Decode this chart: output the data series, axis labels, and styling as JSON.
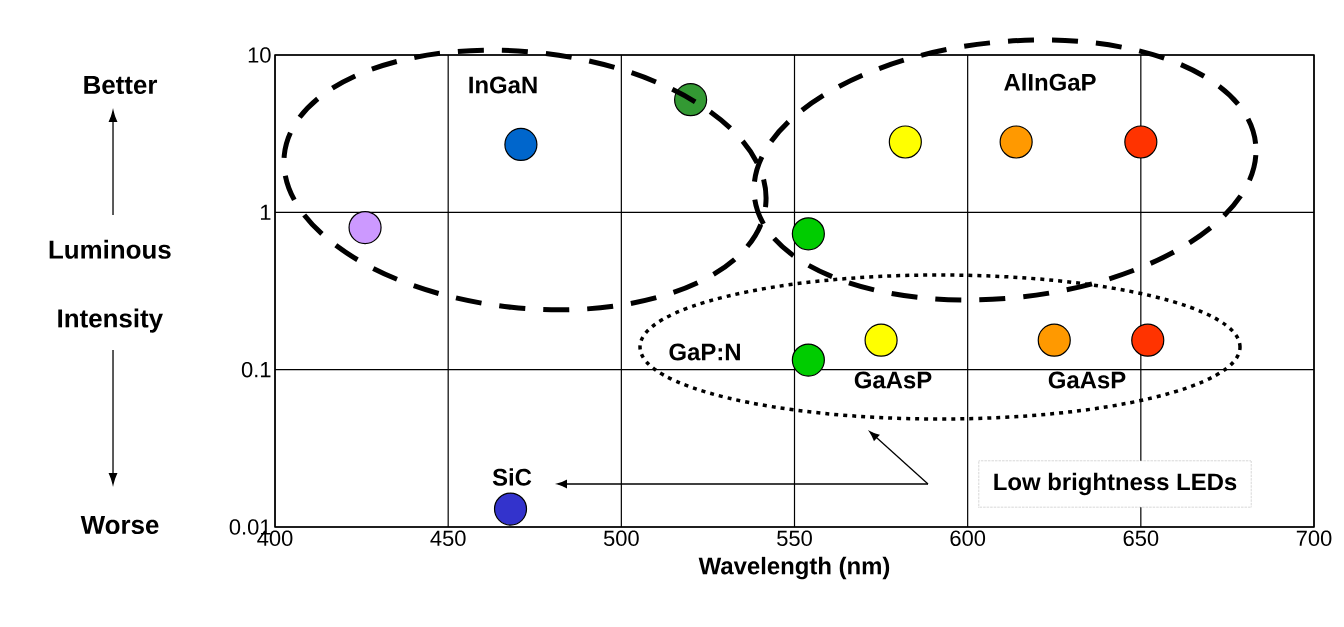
{
  "chart_data": {
    "type": "scatter",
    "xlabel": "Wavelength (nm)",
    "ylabel": "Luminous Intensity",
    "x": [
      426,
      471,
      520,
      554,
      554,
      582,
      614,
      650,
      575,
      625,
      652,
      468
    ],
    "values": [
      0.8,
      2.7,
      5.2,
      0.73,
      0.115,
      2.8,
      2.8,
      2.8,
      0.154,
      0.154,
      0.154,
      0.013
    ],
    "colors": [
      "#cc99ff",
      "#0066cc",
      "#339933",
      "#00cc00",
      "#00cc00",
      "#ffff00",
      "#ff9900",
      "#ff3300",
      "#ffff00",
      "#ff9900",
      "#ff3300",
      "#3333cc"
    ],
    "marker": "circle",
    "log": "y",
    "grid": true,
    "xlim": [
      400,
      700
    ],
    "xticks": [
      400,
      450,
      500,
      550,
      600,
      650,
      700
    ],
    "ylim": [
      0.01,
      10
    ],
    "yticks": [
      0.01,
      0.1,
      1,
      10
    ],
    "annotations": [
      "InGaN",
      "AlInGaP",
      "GaP:N",
      "GaAsP",
      "GaAsP",
      "SiC",
      "Low brightness LEDs",
      "Better",
      "Worse"
    ]
  }
}
